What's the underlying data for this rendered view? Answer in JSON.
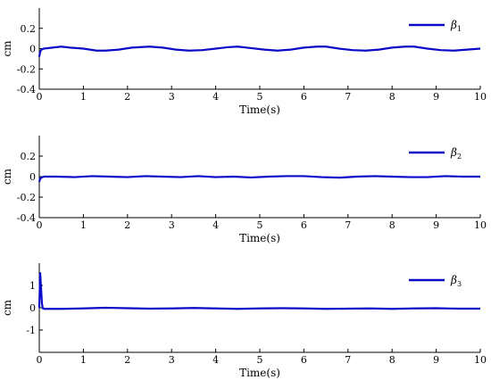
{
  "colors": {
    "line": "#0a0ac8",
    "axis": "#000000"
  },
  "chart_data": [
    {
      "type": "line",
      "xlabel": "Time(s)",
      "ylabel": "cm",
      "xlim": [
        0,
        10
      ],
      "ylim": [
        -0.4,
        0.4
      ],
      "xticks": [
        "0",
        "1",
        "2",
        "3",
        "4",
        "5",
        "6",
        "7",
        "8",
        "9",
        "10"
      ],
      "yticks": [
        {
          "value": 0.2,
          "label": "0.2"
        },
        {
          "value": 0,
          "label": "0"
        },
        {
          "value": -0.2,
          "label": "-0.2"
        },
        {
          "value": -0.4,
          "label": "-0.4"
        }
      ],
      "legend": "top-right",
      "series": [
        {
          "name": "β",
          "subscript": "1",
          "x": [
            0,
            0.02,
            0.05,
            0.1,
            0.3,
            0.5,
            0.7,
            1.0,
            1.3,
            1.5,
            1.8,
            2.1,
            2.5,
            2.8,
            3.1,
            3.4,
            3.7,
            4.0,
            4.3,
            4.5,
            4.8,
            5.1,
            5.4,
            5.7,
            6.0,
            6.3,
            6.5,
            6.8,
            7.1,
            7.4,
            7.7,
            8.0,
            8.3,
            8.5,
            8.8,
            9.1,
            9.4,
            9.7,
            10.0
          ],
          "y": [
            -0.08,
            -0.03,
            -0.01,
            0.0,
            0.01,
            0.02,
            0.01,
            0.0,
            -0.02,
            -0.02,
            -0.01,
            0.01,
            0.02,
            0.01,
            -0.01,
            -0.02,
            -0.015,
            0.0,
            0.015,
            0.02,
            0.005,
            -0.01,
            -0.02,
            -0.01,
            0.01,
            0.02,
            0.02,
            0.0,
            -0.015,
            -0.02,
            -0.01,
            0.01,
            0.02,
            0.02,
            0.0,
            -0.015,
            -0.02,
            -0.01,
            0.0
          ]
        }
      ]
    },
    {
      "type": "line",
      "xlabel": "Time(s)",
      "ylabel": "cm",
      "xlim": [
        0,
        10
      ],
      "ylim": [
        -0.4,
        0.4
      ],
      "xticks": [
        "0",
        "1",
        "2",
        "3",
        "4",
        "5",
        "6",
        "7",
        "8",
        "9",
        "10"
      ],
      "yticks": [
        {
          "value": 0.2,
          "label": "0.2"
        },
        {
          "value": 0,
          "label": "0"
        },
        {
          "value": -0.2,
          "label": "-0.2"
        },
        {
          "value": -0.4,
          "label": "-0.4"
        }
      ],
      "legend": "top-right",
      "series": [
        {
          "name": "β",
          "subscript": "2",
          "x": [
            0,
            0.02,
            0.05,
            0.1,
            0.4,
            0.8,
            1.2,
            1.6,
            2.0,
            2.4,
            2.8,
            3.2,
            3.6,
            4.0,
            4.4,
            4.8,
            5.2,
            5.6,
            6.0,
            6.4,
            6.8,
            7.2,
            7.6,
            8.0,
            8.4,
            8.8,
            9.2,
            9.6,
            10.0
          ],
          "y": [
            -0.05,
            -0.02,
            -0.01,
            0.0,
            0.0,
            -0.005,
            0.005,
            0.0,
            -0.005,
            0.005,
            0.0,
            -0.005,
            0.005,
            -0.005,
            0.0,
            -0.008,
            0.0,
            0.005,
            0.005,
            -0.005,
            -0.01,
            0.0,
            0.005,
            0.0,
            -0.005,
            -0.005,
            0.005,
            0.0,
            0.0
          ]
        }
      ]
    },
    {
      "type": "line",
      "xlabel": "Time(s)",
      "ylabel": "cm",
      "xlim": [
        0,
        10
      ],
      "ylim": [
        -2,
        2
      ],
      "xticks": [
        "0",
        "1",
        "2",
        "3",
        "4",
        "5",
        "6",
        "7",
        "8",
        "9",
        "10"
      ],
      "yticks": [
        {
          "value": 1,
          "label": "1"
        },
        {
          "value": 0,
          "label": "0"
        },
        {
          "value": -1,
          "label": "-1"
        }
      ],
      "legend": "top-right",
      "series": [
        {
          "name": "β",
          "subscript": "3",
          "x": [
            0,
            0.02,
            0.04,
            0.06,
            0.08,
            0.12,
            0.2,
            0.5,
            1.0,
            1.5,
            2.0,
            2.5,
            3.0,
            3.5,
            4.0,
            4.5,
            5.0,
            5.5,
            6.0,
            6.5,
            7.0,
            7.5,
            8.0,
            8.5,
            9.0,
            9.5,
            10.0
          ],
          "y": [
            0.0,
            1.55,
            0.9,
            0.2,
            -0.03,
            -0.05,
            -0.05,
            -0.05,
            -0.03,
            0.0,
            -0.02,
            -0.04,
            -0.03,
            -0.01,
            -0.03,
            -0.05,
            -0.03,
            -0.02,
            -0.03,
            -0.05,
            -0.04,
            -0.03,
            -0.05,
            -0.03,
            -0.02,
            -0.04,
            -0.04
          ]
        }
      ]
    }
  ]
}
